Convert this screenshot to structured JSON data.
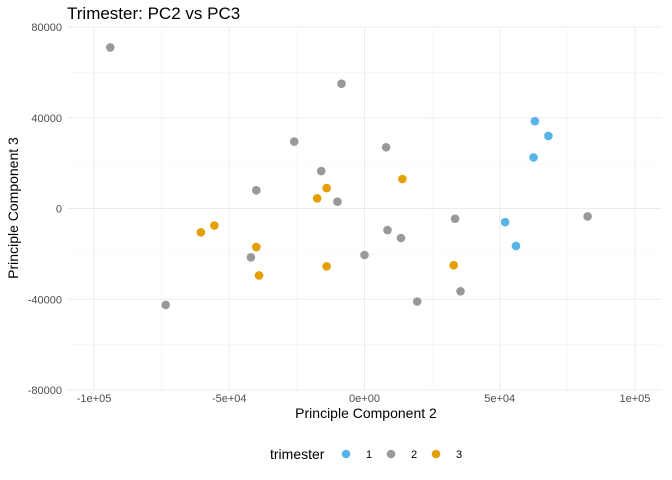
{
  "chart_data": {
    "type": "scatter",
    "title": "Trimester: PC2 vs PC3",
    "xlabel": "Principle Component 2",
    "ylabel": "Principle Component 3",
    "xlim": [
      -110000,
      110000
    ],
    "ylim": [
      -80000,
      80000
    ],
    "x_ticks": [
      -100000,
      -50000,
      0,
      50000,
      100000
    ],
    "x_tick_labels": [
      "-1e+05",
      "-5e+04",
      "0e+00",
      "5e+04",
      "1e+05"
    ],
    "y_ticks": [
      -80000,
      -40000,
      0,
      40000,
      80000
    ],
    "y_tick_labels": [
      "-80000",
      "-40000",
      "0",
      "40000",
      "80000"
    ],
    "grid": true,
    "legend": {
      "title": "trimester",
      "position": "bottom"
    },
    "series": [
      {
        "name": "1",
        "color": "#56b4e9",
        "points": [
          [
            63000,
            38500
          ],
          [
            68000,
            32000
          ],
          [
            62500,
            22500
          ],
          [
            52000,
            -6000
          ],
          [
            56000,
            -16500
          ]
        ]
      },
      {
        "name": "2",
        "color": "#999999",
        "points": [
          [
            -94000,
            71000
          ],
          [
            -8500,
            55000
          ],
          [
            -26000,
            29500
          ],
          [
            8000,
            27000
          ],
          [
            -16000,
            16500
          ],
          [
            -40000,
            8000
          ],
          [
            -10000,
            3000
          ],
          [
            33500,
            -4500
          ],
          [
            82500,
            -3500
          ],
          [
            8500,
            -9500
          ],
          [
            13500,
            -13000
          ],
          [
            -42000,
            -21500
          ],
          [
            0,
            -20500
          ],
          [
            -73500,
            -42500
          ],
          [
            19500,
            -41000
          ],
          [
            35500,
            -36500
          ]
        ]
      },
      {
        "name": "3",
        "color": "#e69f00",
        "points": [
          [
            -14000,
            9000
          ],
          [
            -17500,
            4500
          ],
          [
            14000,
            13000
          ],
          [
            -55500,
            -7500
          ],
          [
            -60500,
            -10500
          ],
          [
            -40000,
            -17000
          ],
          [
            -39000,
            -29500
          ],
          [
            -14000,
            -25500
          ],
          [
            33000,
            -25000
          ]
        ]
      }
    ]
  }
}
